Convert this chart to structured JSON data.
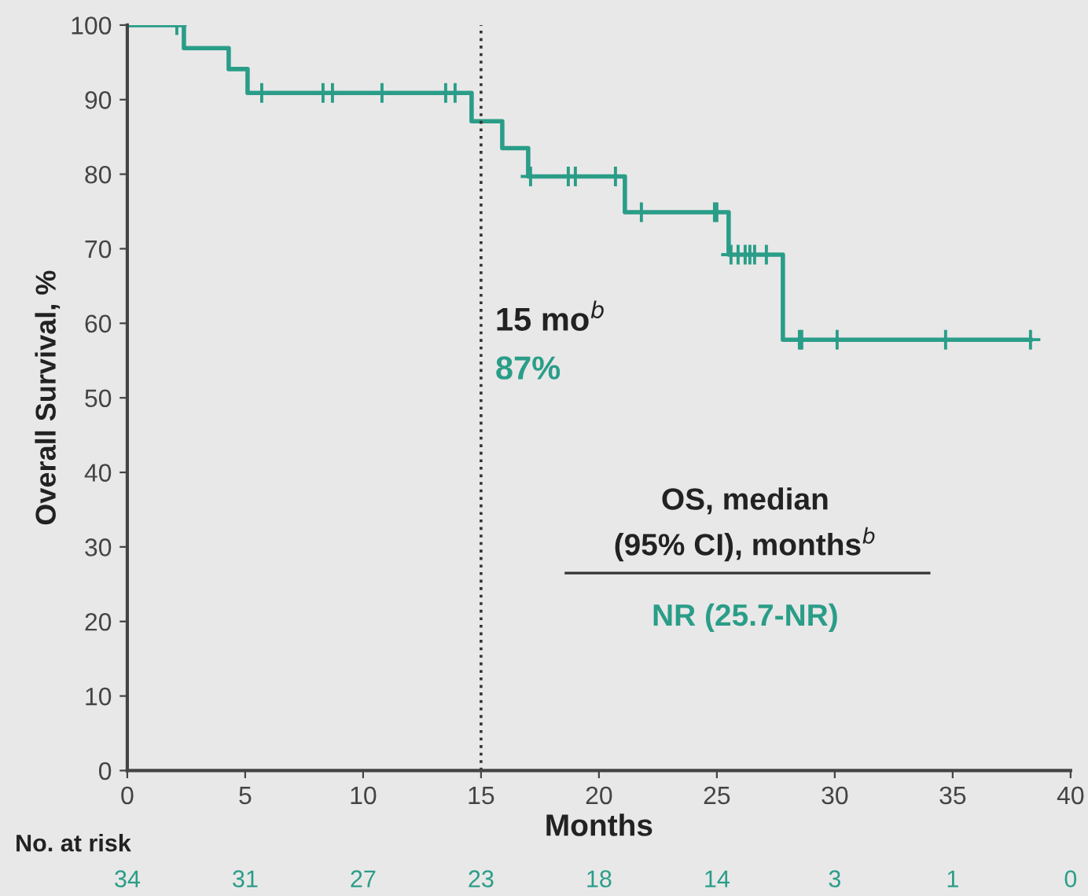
{
  "chart_data": {
    "type": "step",
    "xlabel": "Months",
    "ylabel": "Overall Survival, %",
    "xlim": [
      0,
      40
    ],
    "xticks": [
      0,
      5,
      10,
      15,
      20,
      25,
      30,
      35,
      40
    ],
    "ylim": [
      0,
      100
    ],
    "yticks": [
      0,
      10,
      20,
      30,
      40,
      50,
      60,
      70,
      80,
      90,
      100
    ],
    "grid": false,
    "series": [
      {
        "color": "#2a9d88",
        "x": [
          0,
          2.4,
          4.3,
          5.1,
          14.6,
          15.9,
          17.0,
          21.1,
          25.5,
          27.8,
          38.3
        ],
        "values": [
          100,
          96.9,
          94.1,
          90.9,
          87.1,
          83.5,
          79.7,
          74.9,
          69.2,
          57.8,
          57.8
        ]
      },
      {
        "type": "scatter",
        "marker": "cross",
        "color": "#2a9d88",
        "x": [
          2.1,
          5.7,
          8.3,
          8.7,
          10.8,
          13.5,
          13.9,
          17.1,
          18.7,
          19.0,
          20.7,
          21.8,
          24.9,
          25.0,
          25.6,
          25.9,
          26.2,
          26.4,
          26.6,
          27.1,
          28.5,
          28.6,
          30.1,
          34.7,
          38.3
        ],
        "values": [
          100,
          90.9,
          90.9,
          90.9,
          90.9,
          90.9,
          90.9,
          79.7,
          79.7,
          79.7,
          79.7,
          74.9,
          74.9,
          74.9,
          69.2,
          69.2,
          69.2,
          69.2,
          69.2,
          69.2,
          57.8,
          57.8,
          57.8,
          57.8,
          57.8
        ]
      }
    ],
    "ref_lines": [
      {
        "axis": "x",
        "value": 15,
        "color": "#333333",
        "line_style": "dotted"
      }
    ],
    "annotations": [
      "15 mo$^{b}$",
      "87%",
      "OS, median\n(95% CI), months$^{b}$",
      "NR (25.7-NR)",
      "No. at risk",
      "34",
      "31",
      "27",
      "23",
      "18",
      "14",
      "3",
      "1",
      "0"
    ]
  }
}
